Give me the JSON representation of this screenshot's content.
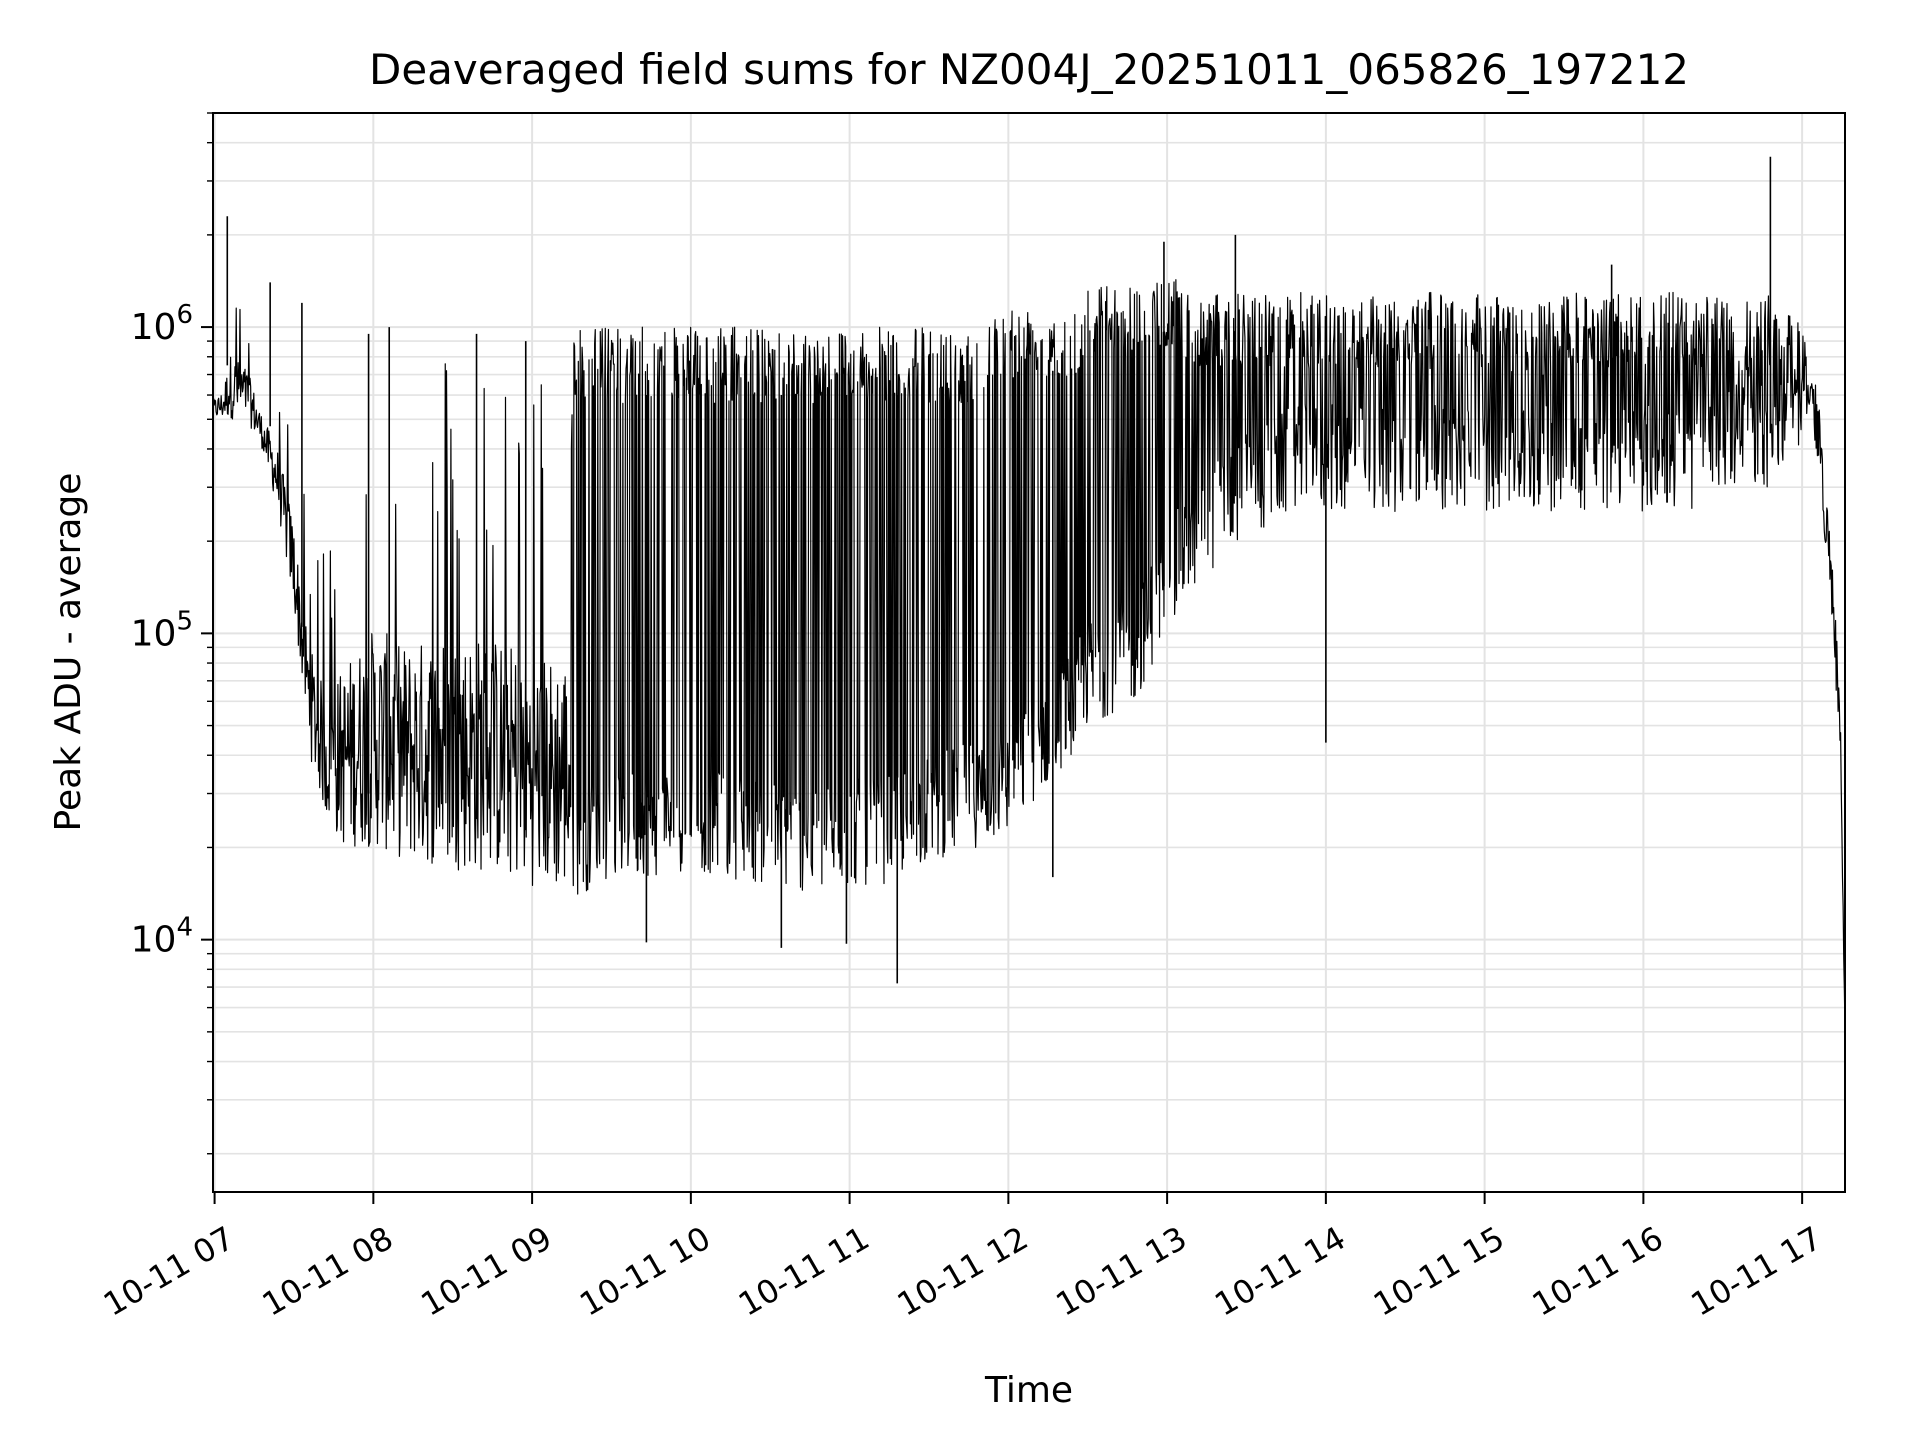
{
  "chart_data": {
    "type": "line",
    "title": "Deaveraged field sums for NZ004J_20251011_065826_197212",
    "xlabel": "Time",
    "ylabel": "Peak ADU - average",
    "yscale": "log",
    "ylim": [
      1500,
      5000000
    ],
    "xlim_hours": [
      6.99,
      17.27
    ],
    "grid": true,
    "x_ticks": [
      {
        "hour": 7,
        "label": "10-11 07"
      },
      {
        "hour": 8,
        "label": "10-11 08"
      },
      {
        "hour": 9,
        "label": "10-11 09"
      },
      {
        "hour": 10,
        "label": "10-11 10"
      },
      {
        "hour": 11,
        "label": "10-11 11"
      },
      {
        "hour": 12,
        "label": "10-11 12"
      },
      {
        "hour": 13,
        "label": "10-11 13"
      },
      {
        "hour": 14,
        "label": "10-11 14"
      },
      {
        "hour": 15,
        "label": "10-11 15"
      },
      {
        "hour": 16,
        "label": "10-11 16"
      },
      {
        "hour": 17,
        "label": "10-11 17"
      }
    ],
    "y_ticks": [
      {
        "value": 10000,
        "base": "10",
        "exp": "4"
      },
      {
        "value": 100000,
        "base": "10",
        "exp": "5"
      },
      {
        "value": 1000000,
        "base": "10",
        "exp": "6"
      }
    ],
    "series": [
      {
        "name": "Peak ADU - average",
        "color": "#000000",
        "envelope": {
          "hours": [
            6.99,
            7.05,
            7.1,
            7.2,
            7.3,
            7.4,
            7.5,
            7.55,
            7.6,
            7.7,
            7.8,
            8.0,
            8.2,
            8.5,
            8.8,
            9.0,
            9.2,
            9.3,
            9.5,
            9.8,
            10.0,
            10.2,
            10.5,
            10.8,
            11.0,
            11.2,
            11.5,
            11.8,
            12.0,
            12.2,
            12.4,
            12.5,
            12.8,
            13.0,
            13.2,
            13.5,
            13.8,
            14.0,
            14.3,
            14.6,
            15.0,
            15.3,
            15.6,
            16.0,
            16.3,
            16.6,
            16.8,
            17.0,
            17.05,
            17.1,
            17.15,
            17.2,
            17.24,
            17.27
          ],
          "upper": [
            700000,
            800000,
            1500000,
            1200000,
            700000,
            700000,
            500000,
            300000,
            250000,
            200000,
            400000,
            800000,
            700000,
            900000,
            900000,
            700000,
            800000,
            1000000,
            1000000,
            1000000,
            1000000,
            1000000,
            1000000,
            1000000,
            1000000,
            1000000,
            1000000,
            1000000,
            1200000,
            1200000,
            1200000,
            1400000,
            1400000,
            1500000,
            1300000,
            1300000,
            1300000,
            1300000,
            1300000,
            1300000,
            1300000,
            1200000,
            1300000,
            1300000,
            1300000,
            1200000,
            1300000,
            1000000,
            800000,
            600000,
            300000,
            150000,
            60000,
            5000
          ],
          "lower": [
            500000,
            500000,
            500000,
            500000,
            400000,
            250000,
            120000,
            70000,
            40000,
            25000,
            20000,
            20000,
            18000,
            17000,
            16000,
            15000,
            14000,
            14000,
            16000,
            16000,
            17000,
            16000,
            15000,
            14000,
            15000,
            15000,
            18000,
            20000,
            22000,
            30000,
            40000,
            50000,
            60000,
            100000,
            150000,
            200000,
            250000,
            250000,
            250000,
            250000,
            250000,
            250000,
            250000,
            250000,
            250000,
            300000,
            300000,
            400000,
            400000,
            300000,
            150000,
            70000,
            30000,
            5000
          ],
          "dense_from_hour": 9.25
        },
        "spikes": [
          {
            "hour": 7.08,
            "value": 2300000
          },
          {
            "hour": 7.35,
            "value": 1400000
          },
          {
            "hour": 7.55,
            "value": 1200000
          },
          {
            "hour": 7.97,
            "value": 950000
          },
          {
            "hour": 8.1,
            "value": 1000000
          },
          {
            "hour": 8.65,
            "value": 950000
          },
          {
            "hour": 8.96,
            "value": 900000
          },
          {
            "hour": 12.98,
            "value": 1900000
          },
          {
            "hour": 13.43,
            "value": 2000000
          },
          {
            "hour": 15.8,
            "value": 1600000
          },
          {
            "hour": 16.8,
            "value": 3600000
          }
        ],
        "dips": [
          {
            "hour": 9.72,
            "value": 9800
          },
          {
            "hour": 10.57,
            "value": 9400
          },
          {
            "hour": 10.98,
            "value": 9700
          },
          {
            "hour": 11.3,
            "value": 7200
          },
          {
            "hour": 12.28,
            "value": 16000
          },
          {
            "hour": 14.0,
            "value": 44000
          }
        ]
      }
    ]
  }
}
